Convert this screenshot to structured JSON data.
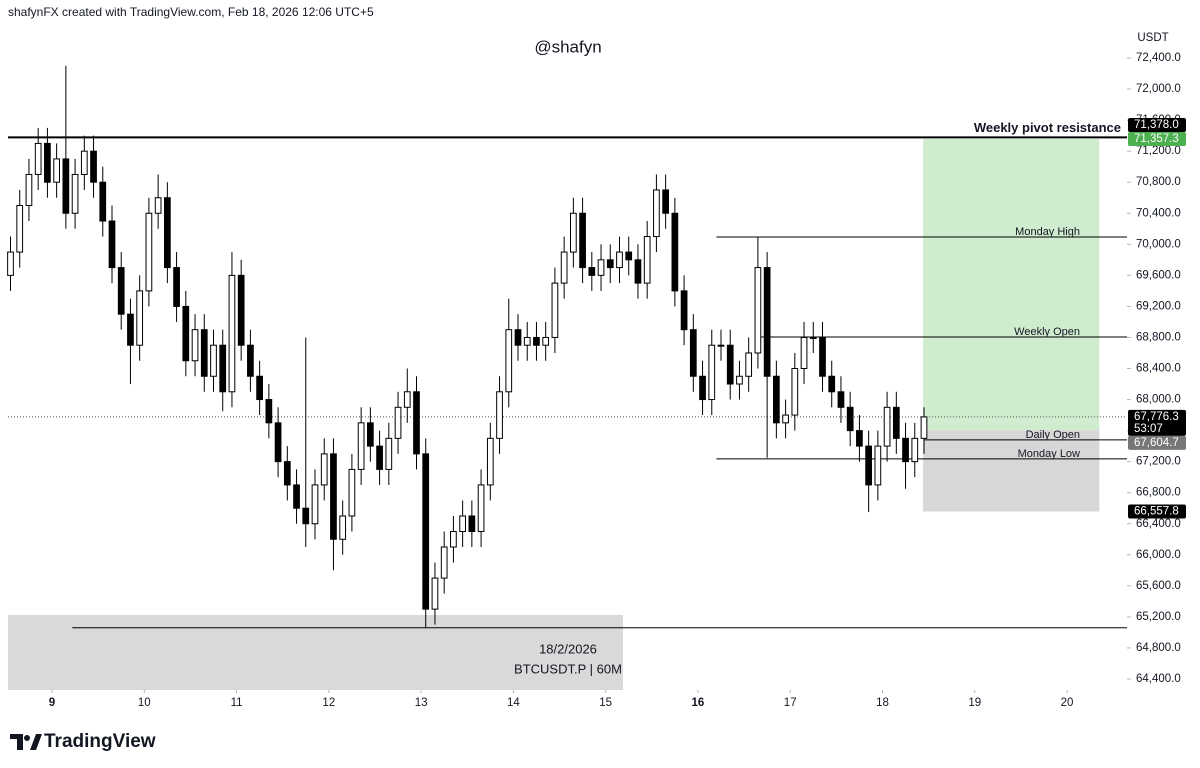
{
  "header": "shafynFX created with TradingView.com, Feb 18, 2026 12:06 UTC+5",
  "watermark": "@shafyn",
  "info_box": {
    "date": "18/2/2026",
    "symbol": "BTCUSDT.P | 60M"
  },
  "footer": {
    "brand": "TradingView"
  },
  "chart_data": {
    "type": "candlestick",
    "y_unit": "USDT",
    "xlim": [
      8.523,
      20.65
    ],
    "ylim": [
      64258,
      72864
    ],
    "xticks": [
      9,
      10,
      11,
      12,
      13,
      14,
      15,
      16,
      17,
      18,
      19,
      20
    ],
    "week_starts": [
      9,
      16
    ],
    "yticks": [
      {
        "value": 72400,
        "label": "72,400.0"
      },
      {
        "value": 72000,
        "label": "72,000.0"
      },
      {
        "value": 71600,
        "label": "71,600.0"
      },
      {
        "value": 71200,
        "label": "71,200.0"
      },
      {
        "value": 70800,
        "label": "70,800.0"
      },
      {
        "value": 70400,
        "label": "70,400.0"
      },
      {
        "value": 70000,
        "label": "70,000.0"
      },
      {
        "value": 69600,
        "label": "69,600.0"
      },
      {
        "value": 69200,
        "label": "69,200.0"
      },
      {
        "value": 68800,
        "label": "68,800.0"
      },
      {
        "value": 68400,
        "label": "68,400.0"
      },
      {
        "value": 68000,
        "label": "68,000.0"
      },
      {
        "value": 67600,
        "label": "67,600.0"
      },
      {
        "value": 67200,
        "label": "67,200.0"
      },
      {
        "value": 66800,
        "label": "66,800.0"
      },
      {
        "value": 66400,
        "label": "66,400.0"
      },
      {
        "value": 66000,
        "label": "66,000.0"
      },
      {
        "value": 65600,
        "label": "65,600.0"
      },
      {
        "value": 65200,
        "label": "65,200.0"
      },
      {
        "value": 64800,
        "label": "64,800.0"
      },
      {
        "value": 64400,
        "label": "64,400.0"
      }
    ],
    "up_color": "#ffffff",
    "down_color": "#000000",
    "wick_color": "#000000",
    "x": [
      8.55,
      8.65,
      8.75,
      8.85,
      8.95,
      9.05,
      9.15,
      9.25,
      9.35,
      9.45,
      9.55,
      9.65,
      9.75,
      9.85,
      9.95,
      10.05,
      10.15,
      10.25,
      10.35,
      10.45,
      10.55,
      10.65,
      10.75,
      10.85,
      10.95,
      11.05,
      11.15,
      11.25,
      11.35,
      11.45,
      11.55,
      11.65,
      11.75,
      11.85,
      11.95,
      12.05,
      12.15,
      12.25,
      12.35,
      12.45,
      12.55,
      12.65,
      12.75,
      12.85,
      12.95,
      13.05,
      13.15,
      13.25,
      13.35,
      13.45,
      13.55,
      13.65,
      13.75,
      13.85,
      13.95,
      14.05,
      14.15,
      14.25,
      14.35,
      14.45,
      14.55,
      14.65,
      14.75,
      14.85,
      14.95,
      15.05,
      15.15,
      15.25,
      15.35,
      15.45,
      15.55,
      15.65,
      15.75,
      15.85,
      15.95,
      16.05,
      16.15,
      16.25,
      16.35,
      16.45,
      16.55,
      16.65,
      16.75,
      16.85,
      16.95,
      17.05,
      17.15,
      17.25,
      17.35,
      17.45,
      17.55,
      17.65,
      17.75,
      17.85,
      17.95,
      18.05,
      18.15,
      18.25,
      18.35,
      18.45
    ],
    "open": [
      69600,
      69900,
      70500,
      70900,
      71300,
      70800,
      71100,
      70400,
      70900,
      71200,
      70800,
      70300,
      69700,
      69100,
      68700,
      69400,
      70400,
      70600,
      69700,
      69200,
      68500,
      68900,
      68300,
      68700,
      68100,
      69600,
      68700,
      68300,
      68000,
      67700,
      67200,
      66900,
      66600,
      66400,
      66900,
      67300,
      66200,
      66500,
      67100,
      67700,
      67400,
      67100,
      67500,
      67900,
      68100,
      67300,
      65300,
      65700,
      66100,
      66300,
      66500,
      66300,
      66900,
      67500,
      68100,
      68900,
      68700,
      68800,
      68700,
      68800,
      69500,
      69900,
      70400,
      69700,
      69600,
      69800,
      69700,
      69900,
      69800,
      69500,
      70100,
      70700,
      70400,
      69400,
      68900,
      68300,
      68000,
      68700,
      68700,
      68200,
      68300,
      68600,
      69700,
      68300,
      67700,
      67800,
      68400,
      68800,
      68800,
      68300,
      68100,
      67900,
      67600,
      67400,
      66900,
      67400,
      67900,
      67500,
      67200,
      67500
    ],
    "high": [
      70100,
      70700,
      71100,
      71500,
      71500,
      71300,
      72300,
      71100,
      71400,
      71400,
      71000,
      70500,
      69900,
      69300,
      69600,
      70600,
      70900,
      70800,
      69900,
      69400,
      69100,
      69100,
      68900,
      68900,
      69900,
      69800,
      68900,
      68500,
      68200,
      67900,
      67400,
      67100,
      68800,
      67100,
      67500,
      67500,
      66700,
      67300,
      67900,
      67900,
      67600,
      67700,
      68100,
      68400,
      68300,
      67500,
      65900,
      66300,
      66500,
      66700,
      66700,
      67100,
      67700,
      68300,
      69300,
      69100,
      69000,
      69000,
      69000,
      69700,
      70100,
      70600,
      70600,
      69900,
      70000,
      70000,
      70100,
      70100,
      70000,
      70300,
      70900,
      70900,
      70600,
      69600,
      69100,
      68500,
      68900,
      68900,
      68900,
      68500,
      68800,
      70090,
      69900,
      68500,
      68000,
      68600,
      69000,
      69000,
      69000,
      68500,
      68300,
      68100,
      67800,
      67600,
      67600,
      68100,
      68100,
      67700,
      67700,
      67900
    ],
    "low": [
      69400,
      69700,
      70300,
      70700,
      70600,
      70600,
      70200,
      70200,
      70700,
      70600,
      70100,
      69500,
      68900,
      68200,
      68500,
      69200,
      70200,
      69500,
      69000,
      68300,
      68300,
      68100,
      68100,
      67850,
      67900,
      68500,
      68100,
      67800,
      67500,
      67000,
      66700,
      66400,
      66100,
      66200,
      66700,
      65800,
      66000,
      66300,
      66900,
      67200,
      66900,
      66900,
      67300,
      67700,
      67100,
      65060,
      65100,
      65500,
      65900,
      66100,
      66100,
      66100,
      66700,
      67300,
      67900,
      68500,
      68500,
      68500,
      68500,
      68600,
      69300,
      69700,
      69500,
      69400,
      69400,
      69500,
      69500,
      69600,
      69300,
      69300,
      69900,
      70200,
      69200,
      68700,
      68100,
      67800,
      67800,
      68500,
      68000,
      68000,
      68100,
      68400,
      67250,
      67500,
      67500,
      67600,
      68200,
      68600,
      68100,
      67900,
      67700,
      67400,
      67200,
      66550,
      66700,
      67200,
      67300,
      66850,
      67000,
      67300
    ],
    "close": [
      69900,
      70500,
      70900,
      71300,
      70800,
      71100,
      70400,
      70900,
      71200,
      70800,
      70300,
      69700,
      69100,
      68700,
      69400,
      70400,
      70600,
      69700,
      69200,
      68500,
      68900,
      68300,
      68700,
      68100,
      69600,
      68700,
      68300,
      68000,
      67700,
      67200,
      66900,
      66600,
      66400,
      66900,
      67300,
      66200,
      66500,
      67100,
      67700,
      67400,
      67100,
      67500,
      67900,
      68100,
      67300,
      65300,
      65700,
      66100,
      66300,
      66500,
      66300,
      66900,
      67500,
      68100,
      68900,
      68700,
      68800,
      68700,
      68800,
      69500,
      69900,
      70400,
      69700,
      69600,
      69800,
      69700,
      69900,
      69800,
      69500,
      70100,
      70700,
      70400,
      69400,
      68900,
      68300,
      68000,
      68700,
      68700,
      68200,
      68300,
      68600,
      69700,
      68300,
      67700,
      67800,
      68400,
      68800,
      68800,
      68300,
      68100,
      67900,
      67600,
      67400,
      66900,
      67400,
      67900,
      67500,
      67200,
      67500,
      67776.3
    ],
    "zones": [
      {
        "from": 18.44,
        "to": 20.35,
        "top": 71357.3,
        "bottom": 67604.7,
        "color": "#cfeccf"
      },
      {
        "from": 18.44,
        "to": 20.35,
        "top": 67604.7,
        "bottom": 66557.8,
        "color": "#d7d7d7"
      }
    ],
    "levels": [
      {
        "name": "Weekly pivot resistance",
        "value": 71378.0,
        "from": 8.523,
        "emphasis": true
      },
      {
        "value": 65060,
        "from": 9.22
      },
      {
        "name": "Monday High",
        "value": 70094,
        "from": 16.2
      },
      {
        "name": "Weekly Open",
        "value": 68806,
        "from": 16.65
      },
      {
        "name": "Daily Open",
        "value": 67480,
        "from": 18.45
      },
      {
        "name": "Monday Low",
        "value": 67235,
        "from": 16.2
      }
    ],
    "last_price": 67776.3,
    "price_tags": [
      {
        "value": 71357.3,
        "label": "71,357.3",
        "color": "#4caf50"
      },
      {
        "value": 71378.0,
        "label": "71,378.0",
        "color": "#000000"
      },
      {
        "value": 67776.3,
        "label": "67,776.3",
        "color": "#000000",
        "countdown": "53:07"
      },
      {
        "value": 67604.7,
        "label": "67,604.7",
        "color": "#777777"
      },
      {
        "value": 66557.8,
        "label": "66,557.8",
        "color": "#000000"
      }
    ]
  }
}
